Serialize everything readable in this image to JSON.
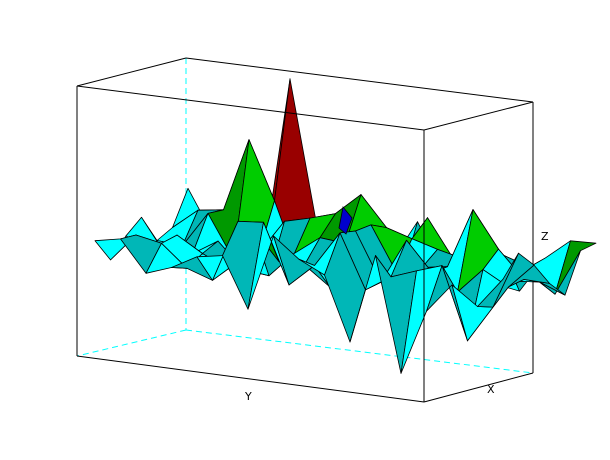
{
  "chart_data": {
    "type": "surface",
    "title": "",
    "xlabel": "X",
    "ylabel": "Y",
    "zlabel": "Z",
    "grid": false,
    "legend": "none",
    "box": "full",
    "colors": {
      "hidden_edges": "#00ffff",
      "box": "#000000",
      "facet_edge": "#000000",
      "facet_palette": [
        "#00ffff",
        "#00b7b7",
        "#00cc00",
        "#009900",
        "#990000",
        "#cc0000",
        "#0000cc"
      ]
    },
    "description_values": {
      "x_samples": 10,
      "y_samples": 20,
      "z_peak_relative": 1.0,
      "z_trough_relative": -0.55
    }
  }
}
